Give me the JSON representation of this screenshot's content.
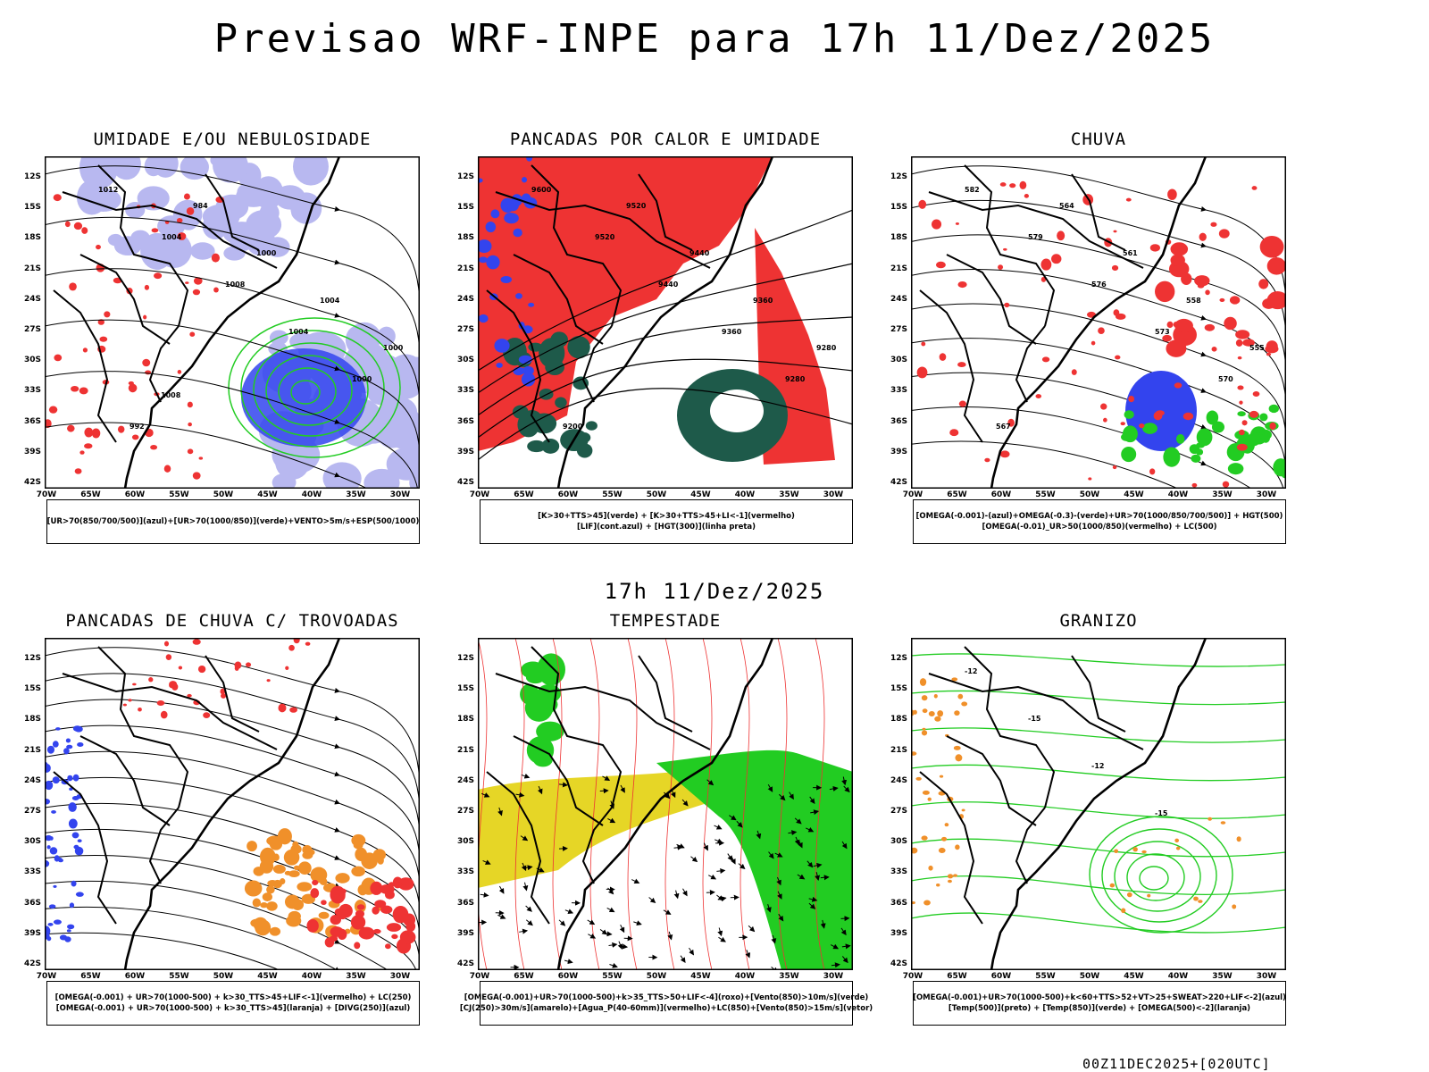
{
  "title": "Previsao WRF-INPE  para 17h 11/Dez/2025",
  "mid_title": "17h 11/Dez/2025",
  "footer": "00Z11DEC2025+[020UTC]",
  "axes": {
    "lat": [
      "12S",
      "15S",
      "18S",
      "21S",
      "24S",
      "27S",
      "30S",
      "33S",
      "36S",
      "39S",
      "42S"
    ],
    "lon": [
      "70W",
      "65W",
      "60W",
      "55W",
      "50W",
      "45W",
      "40W",
      "35W",
      "30W"
    ]
  },
  "colors": {
    "blue": "#3344ee",
    "lavender": "#b8b8f0",
    "green": "#22cc22",
    "red": "#ee3333",
    "darkgreen": "#1e5a4a",
    "orange": "#f0902a",
    "yellow": "#e6d626",
    "bright_green": "#22cc22"
  },
  "panels": [
    {
      "title": "UMIDADE E/OU NEBULOSIDADE",
      "legend": [
        "[UR>70(850/700/500)](azul)+[UR>70(1000/850)](verde)+VENTO>5m/s+ESP(500/1000)"
      ],
      "labels": [
        "1012",
        "1004",
        "1008",
        "1004",
        "1000",
        "992",
        "984",
        "1000",
        "1004",
        "1000",
        "1008"
      ]
    },
    {
      "title": "PANCADAS POR CALOR E UMIDADE",
      "legend": [
        "[K>30+TTS>45](verde)  +  [K>30+TTS>45+LI<-1](vermelho)",
        "[LIF](cont.azul)  +  [HGT(300)](linha preta)"
      ],
      "labels": [
        "9600",
        "9520",
        "9440",
        "9360",
        "9280",
        "9200",
        "9520",
        "9440",
        "9360",
        "9280"
      ]
    },
    {
      "title": "CHUVA",
      "legend": [
        "[OMEGA(-0.001)-(azul)+OMEGA(-0.3)-(verde)+UR>70(1000/850/700/500)]  +  HGT(500)",
        "[OMEGA(-0.01)_UR>50(1000/850)(vermelho)  +  LC(500)"
      ],
      "labels": [
        "582",
        "579",
        "576",
        "573",
        "570",
        "567",
        "564",
        "561",
        "558",
        "555"
      ]
    },
    {
      "title": "PANCADAS DE CHUVA C/ TROVOADAS",
      "legend": [
        "[OMEGA(-0.001)  +  UR>70(1000-500)  +  k>30_TTS>45+LIF<-1](vermelho)  +  LC(250)",
        "[OMEGA(-0.001)  +  UR>70(1000-500)  +  k>30_TTS>45](laranja)  +  [DIVG(250)](azul)"
      ],
      "labels": []
    },
    {
      "title": "TEMPESTADE",
      "legend": [
        "[OMEGA(-0.001)+UR>70(1000-500)+k>35_TTS>50+LIF<-4](roxo)+[Vento(850)>10m/s](verde)",
        "[CJ(250)>30m/s](amarelo)+[Agua_P(40-60mm)](vermelho)+LC(850)+[Vento(850)>15m/s](vetor)"
      ],
      "labels": []
    },
    {
      "title": "GRANIZO",
      "legend": [
        "[OMEGA(-0.001)+UR>70(1000-500)+k<60+TTS>52+VT>25+SWEAT>220+LIF<-2](azul)",
        "[Temp(500)](preto)  +  [Temp(850)](verde)  +  [OMEGA(500)<-2](laranja)"
      ],
      "labels": [
        "-12",
        "-15",
        "-12",
        "-15"
      ]
    }
  ]
}
